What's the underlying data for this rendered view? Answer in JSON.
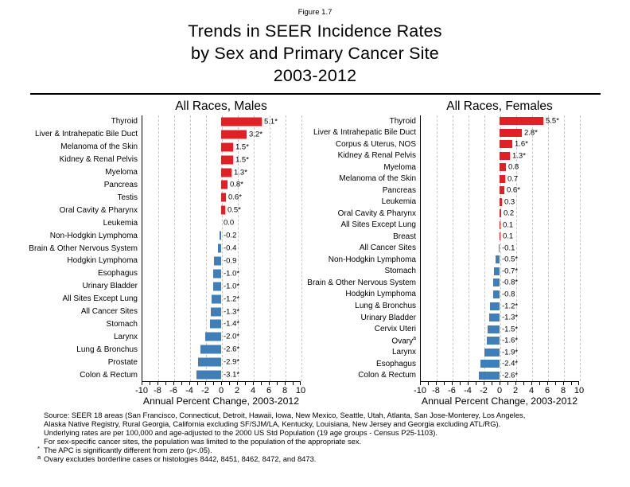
{
  "figure": {
    "caption": "Figure 1.7",
    "title_lines": [
      "Trends in SEER Incidence Rates",
      "by Sex and Primary Cancer Site",
      "2003-2012"
    ]
  },
  "colors": {
    "positive_bar": "#de2126",
    "negative_bar": "#3f7eb9",
    "gridline": "#c6c6c6",
    "axis": "#000000"
  },
  "chart_data": [
    {
      "type": "bar",
      "orientation": "horizontal",
      "title": "All Races, Males",
      "xlabel": "Annual Percent Change, 2003-2012",
      "xlim": [
        -10,
        10
      ],
      "xticks": [
        -10,
        -8,
        -6,
        -4,
        -2,
        0,
        2,
        4,
        6,
        8,
        10
      ],
      "grid": "dashed-vertical",
      "bars": [
        {
          "label": "Thyroid",
          "value": 5.1,
          "display": "5.1*"
        },
        {
          "label": "Liver & Intrahepatic Bile Duct",
          "value": 3.2,
          "display": "3.2*"
        },
        {
          "label": "Melanoma of the Skin",
          "value": 1.5,
          "display": "1.5*"
        },
        {
          "label": "Kidney & Renal Pelvis",
          "value": 1.5,
          "display": "1.5*"
        },
        {
          "label": "Myeloma",
          "value": 1.3,
          "display": "1.3*"
        },
        {
          "label": "Pancreas",
          "value": 0.8,
          "display": "0.8*"
        },
        {
          "label": "Testis",
          "value": 0.6,
          "display": "0.6*"
        },
        {
          "label": "Oral Cavity & Pharynx",
          "value": 0.5,
          "display": "0.5*"
        },
        {
          "label": "Leukemia",
          "value": 0.0,
          "display": "0.0"
        },
        {
          "label": "Non-Hodgkin Lymphoma",
          "value": -0.2,
          "display": "-0.2"
        },
        {
          "label": "Brain & Other Nervous System",
          "value": -0.4,
          "display": "-0.4"
        },
        {
          "label": "Hodgkin Lymphoma",
          "value": -0.9,
          "display": "-0.9"
        },
        {
          "label": "Esophagus",
          "value": -1.0,
          "display": "-1.0*"
        },
        {
          "label": "Urinary Bladder",
          "value": -1.0,
          "display": "-1.0*"
        },
        {
          "label": "All Sites Except Lung",
          "value": -1.2,
          "display": "-1.2*"
        },
        {
          "label": "All Cancer Sites",
          "value": -1.3,
          "display": "-1.3*"
        },
        {
          "label": "Stomach",
          "value": -1.4,
          "display": "-1.4*"
        },
        {
          "label": "Larynx",
          "value": -2.0,
          "display": "-2.0*"
        },
        {
          "label": "Lung & Bronchus",
          "value": -2.6,
          "display": "-2.6*"
        },
        {
          "label": "Prostate",
          "value": -2.9,
          "display": "-2.9*"
        },
        {
          "label": "Colon & Rectum",
          "value": -3.1,
          "display": "-3.1*"
        }
      ]
    },
    {
      "type": "bar",
      "orientation": "horizontal",
      "title": "All Races, Females",
      "xlabel": "Annual Percent Change, 2003-2012",
      "xlim": [
        -10,
        10
      ],
      "xticks": [
        -10,
        -8,
        -6,
        -4,
        -2,
        0,
        2,
        4,
        6,
        8,
        10
      ],
      "grid": "dashed-vertical",
      "bars": [
        {
          "label": "Thyroid",
          "value": 5.5,
          "display": "5.5*"
        },
        {
          "label": "Liver & Intrahepatic Bile Duct",
          "value": 2.8,
          "display": "2.8*"
        },
        {
          "label": "Corpus & Uterus, NOS",
          "value": 1.6,
          "display": "1.6*"
        },
        {
          "label": "Kidney & Renal Pelvis",
          "value": 1.3,
          "display": "1.3*"
        },
        {
          "label": "Myeloma",
          "value": 0.8,
          "display": "0.8"
        },
        {
          "label": "Melanoma of the Skin",
          "value": 0.7,
          "display": "0.7"
        },
        {
          "label": "Pancreas",
          "value": 0.6,
          "display": "0.6*"
        },
        {
          "label": "Leukemia",
          "value": 0.3,
          "display": "0.3"
        },
        {
          "label": "Oral Cavity & Pharynx",
          "value": 0.2,
          "display": "0.2"
        },
        {
          "label": "All Sites Except Lung",
          "value": 0.1,
          "display": "0.1"
        },
        {
          "label": "Breast",
          "value": 0.1,
          "display": "0.1"
        },
        {
          "label": "All Cancer Sites",
          "value": -0.1,
          "display": "-0.1"
        },
        {
          "label": "Non-Hodgkin Lymphoma",
          "value": -0.5,
          "display": "-0.5*"
        },
        {
          "label": "Stomach",
          "value": -0.7,
          "display": "-0.7*"
        },
        {
          "label": "Brain & Other Nervous System",
          "value": -0.8,
          "display": "-0.8*"
        },
        {
          "label": "Hodgkin Lymphoma",
          "value": -0.8,
          "display": "-0.8"
        },
        {
          "label": "Lung & Bronchus",
          "value": -1.2,
          "display": "-1.2*"
        },
        {
          "label": "Urinary Bladder",
          "value": -1.3,
          "display": "-1.3*"
        },
        {
          "label": "Cervix Uteri",
          "value": -1.5,
          "display": "-1.5*"
        },
        {
          "label": "Ovary",
          "sup": "a",
          "value": -1.6,
          "display": "-1.6*"
        },
        {
          "label": "Larynx",
          "value": -1.9,
          "display": "-1.9*"
        },
        {
          "label": "Esophagus",
          "value": -2.4,
          "display": "-2.4*"
        },
        {
          "label": "Colon & Rectum",
          "value": -2.6,
          "display": "-2.6*"
        }
      ]
    }
  ],
  "footer": {
    "source_lines": [
      "Source: SEER 18 areas (San Francisco, Connecticut, Detroit, Hawaii, Iowa, New Mexico, Seattle, Utah, Atlanta, San Jose-Monterey, Los Angeles,",
      "Alaska Native Registry, Rural Georgia, California excluding SF/SJM/LA, Kentucky, Louisiana, New Jersey and Georgia excluding ATL/RG).",
      "Underlying rates are per 100,000 and age-adjusted to the 2000 US Std Population (19 age groups - Census P25-1103).",
      "For sex-specific cancer sites, the population was limited to the population of the appropriate sex."
    ],
    "footnotes": [
      {
        "marker": "*",
        "text": "The APC is significantly different from zero (p<.05)."
      },
      {
        "marker": "a",
        "text": "Ovary excludes borderline cases or histologies 8442, 8451, 8462, 8472, and 8473."
      }
    ]
  }
}
